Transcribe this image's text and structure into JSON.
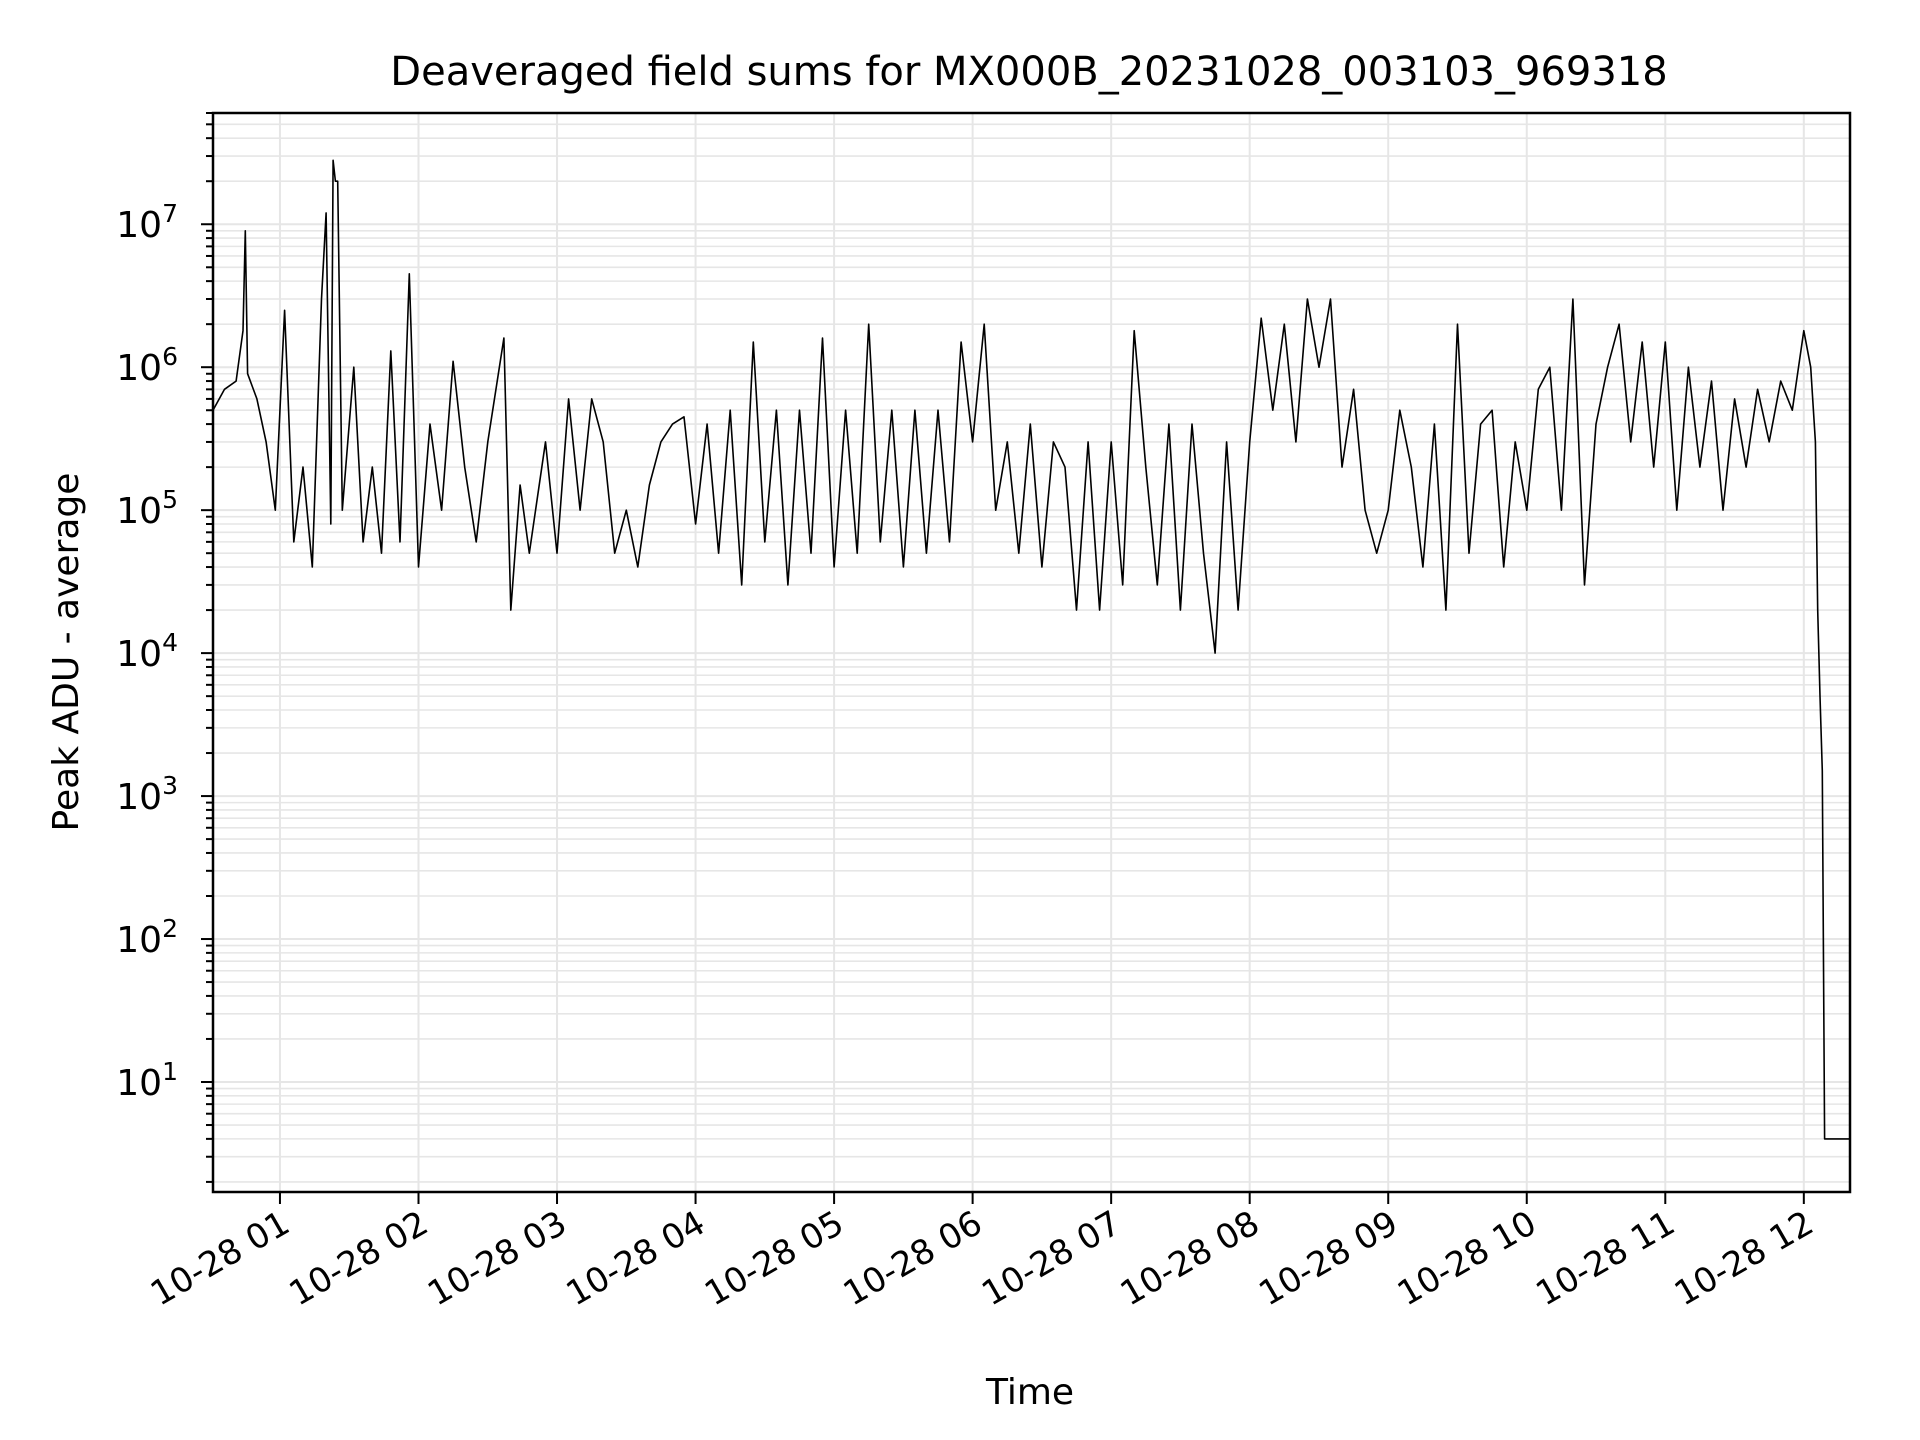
{
  "chart_data": {
    "type": "line",
    "title": "Deaveraged field sums for MX000B_20231028_003103_969318",
    "xlabel": "Time",
    "ylabel": "Peak ADU - average",
    "yscale": "log",
    "ylim": [
      1.7,
      60000000
    ],
    "xlim": [
      "2023-10-28 00:31",
      "2023-10-28 12:20"
    ],
    "x_ticks": [
      "10-28 01",
      "10-28 02",
      "10-28 03",
      "10-28 04",
      "10-28 05",
      "10-28 06",
      "10-28 07",
      "10-28 08",
      "10-28 09",
      "10-28 10",
      "10-28 11",
      "10-28 12"
    ],
    "y_ticks": [
      {
        "value": 10,
        "base": "10",
        "exp": "1"
      },
      {
        "value": 100,
        "base": "10",
        "exp": "2"
      },
      {
        "value": 1000,
        "base": "10",
        "exp": "3"
      },
      {
        "value": 10000,
        "base": "10",
        "exp": "4"
      },
      {
        "value": 100000,
        "base": "10",
        "exp": "5"
      },
      {
        "value": 1000000,
        "base": "10",
        "exp": "6"
      },
      {
        "value": 10000000,
        "base": "10",
        "exp": "7"
      }
    ],
    "grid": true,
    "legend": "none",
    "line_color": "#000000",
    "grid_color": "#e6e6e6",
    "series": [
      {
        "points": [
          [
            "2023-10-28 00:31",
            500000
          ],
          [
            "2023-10-28 00:36",
            700000
          ],
          [
            "2023-10-28 00:41",
            800000
          ],
          [
            "2023-10-28 00:44",
            1800000
          ],
          [
            "2023-10-28 00:45",
            9000000
          ],
          [
            "2023-10-28 00:46",
            900000
          ],
          [
            "2023-10-28 00:50",
            600000
          ],
          [
            "2023-10-28 00:54",
            300000
          ],
          [
            "2023-10-28 00:58",
            100000
          ],
          [
            "2023-10-28 01:02",
            2500000
          ],
          [
            "2023-10-28 01:06",
            60000
          ],
          [
            "2023-10-28 01:10",
            200000
          ],
          [
            "2023-10-28 01:14",
            40000
          ],
          [
            "2023-10-28 01:18",
            3000000
          ],
          [
            "2023-10-28 01:20",
            12000000
          ],
          [
            "2023-10-28 01:22",
            80000
          ],
          [
            "2023-10-28 01:23",
            28000000
          ],
          [
            "2023-10-28 01:24",
            20000000
          ],
          [
            "2023-10-28 01:25",
            20000000
          ],
          [
            "2023-10-28 01:27",
            100000
          ],
          [
            "2023-10-28 01:32",
            1000000
          ],
          [
            "2023-10-28 01:36",
            60000
          ],
          [
            "2023-10-28 01:40",
            200000
          ],
          [
            "2023-10-28 01:44",
            50000
          ],
          [
            "2023-10-28 01:48",
            1300000
          ],
          [
            "2023-10-28 01:52",
            60000
          ],
          [
            "2023-10-28 01:56",
            4500000
          ],
          [
            "2023-10-28 02:00",
            40000
          ],
          [
            "2023-10-28 02:05",
            400000
          ],
          [
            "2023-10-28 02:10",
            100000
          ],
          [
            "2023-10-28 02:15",
            1100000
          ],
          [
            "2023-10-28 02:20",
            200000
          ],
          [
            "2023-10-28 02:25",
            60000
          ],
          [
            "2023-10-28 02:30",
            300000
          ],
          [
            "2023-10-28 02:37",
            1600000
          ],
          [
            "2023-10-28 02:40",
            20000
          ],
          [
            "2023-10-28 02:44",
            150000
          ],
          [
            "2023-10-28 02:48",
            50000
          ],
          [
            "2023-10-28 02:55",
            300000
          ],
          [
            "2023-10-28 03:00",
            50000
          ],
          [
            "2023-10-28 03:05",
            600000
          ],
          [
            "2023-10-28 03:10",
            100000
          ],
          [
            "2023-10-28 03:15",
            600000
          ],
          [
            "2023-10-28 03:20",
            300000
          ],
          [
            "2023-10-28 03:25",
            50000
          ],
          [
            "2023-10-28 03:30",
            100000
          ],
          [
            "2023-10-28 03:35",
            40000
          ],
          [
            "2023-10-28 03:40",
            150000
          ],
          [
            "2023-10-28 03:45",
            300000
          ],
          [
            "2023-10-28 03:50",
            400000
          ],
          [
            "2023-10-28 03:55",
            450000
          ],
          [
            "2023-10-28 04:00",
            80000
          ],
          [
            "2023-10-28 04:05",
            400000
          ],
          [
            "2023-10-28 04:10",
            50000
          ],
          [
            "2023-10-28 04:15",
            500000
          ],
          [
            "2023-10-28 04:20",
            30000
          ],
          [
            "2023-10-28 04:25",
            1500000
          ],
          [
            "2023-10-28 04:30",
            60000
          ],
          [
            "2023-10-28 04:35",
            500000
          ],
          [
            "2023-10-28 04:40",
            30000
          ],
          [
            "2023-10-28 04:45",
            500000
          ],
          [
            "2023-10-28 04:50",
            50000
          ],
          [
            "2023-10-28 04:55",
            1600000
          ],
          [
            "2023-10-28 05:00",
            40000
          ],
          [
            "2023-10-28 05:05",
            500000
          ],
          [
            "2023-10-28 05:10",
            50000
          ],
          [
            "2023-10-28 05:15",
            2000000
          ],
          [
            "2023-10-28 05:20",
            60000
          ],
          [
            "2023-10-28 05:25",
            500000
          ],
          [
            "2023-10-28 05:30",
            40000
          ],
          [
            "2023-10-28 05:35",
            500000
          ],
          [
            "2023-10-28 05:40",
            50000
          ],
          [
            "2023-10-28 05:45",
            500000
          ],
          [
            "2023-10-28 05:50",
            60000
          ],
          [
            "2023-10-28 05:55",
            1500000
          ],
          [
            "2023-10-28 06:00",
            300000
          ],
          [
            "2023-10-28 06:05",
            2000000
          ],
          [
            "2023-10-28 06:10",
            100000
          ],
          [
            "2023-10-28 06:15",
            300000
          ],
          [
            "2023-10-28 06:20",
            50000
          ],
          [
            "2023-10-28 06:25",
            400000
          ],
          [
            "2023-10-28 06:30",
            40000
          ],
          [
            "2023-10-28 06:35",
            300000
          ],
          [
            "2023-10-28 06:40",
            200000
          ],
          [
            "2023-10-28 06:45",
            20000
          ],
          [
            "2023-10-28 06:50",
            300000
          ],
          [
            "2023-10-28 06:55",
            20000
          ],
          [
            "2023-10-28 07:00",
            300000
          ],
          [
            "2023-10-28 07:05",
            30000
          ],
          [
            "2023-10-28 07:10",
            1800000
          ],
          [
            "2023-10-28 07:15",
            200000
          ],
          [
            "2023-10-28 07:20",
            30000
          ],
          [
            "2023-10-28 07:25",
            400000
          ],
          [
            "2023-10-28 07:30",
            20000
          ],
          [
            "2023-10-28 07:35",
            400000
          ],
          [
            "2023-10-28 07:40",
            50000
          ],
          [
            "2023-10-28 07:45",
            10000
          ],
          [
            "2023-10-28 07:50",
            300000
          ],
          [
            "2023-10-28 07:55",
            20000
          ],
          [
            "2023-10-28 08:00",
            300000
          ],
          [
            "2023-10-28 08:05",
            2200000
          ],
          [
            "2023-10-28 08:10",
            500000
          ],
          [
            "2023-10-28 08:15",
            2000000
          ],
          [
            "2023-10-28 08:20",
            300000
          ],
          [
            "2023-10-28 08:25",
            3000000
          ],
          [
            "2023-10-28 08:30",
            1000000
          ],
          [
            "2023-10-28 08:35",
            3000000
          ],
          [
            "2023-10-28 08:40",
            200000
          ],
          [
            "2023-10-28 08:45",
            700000
          ],
          [
            "2023-10-28 08:50",
            100000
          ],
          [
            "2023-10-28 08:55",
            50000
          ],
          [
            "2023-10-28 09:00",
            100000
          ],
          [
            "2023-10-28 09:05",
            500000
          ],
          [
            "2023-10-28 09:10",
            200000
          ],
          [
            "2023-10-28 09:15",
            40000
          ],
          [
            "2023-10-28 09:20",
            400000
          ],
          [
            "2023-10-28 09:25",
            20000
          ],
          [
            "2023-10-28 09:30",
            2000000
          ],
          [
            "2023-10-28 09:35",
            50000
          ],
          [
            "2023-10-28 09:40",
            400000
          ],
          [
            "2023-10-28 09:45",
            500000
          ],
          [
            "2023-10-28 09:50",
            40000
          ],
          [
            "2023-10-28 09:55",
            300000
          ],
          [
            "2023-10-28 10:00",
            100000
          ],
          [
            "2023-10-28 10:05",
            700000
          ],
          [
            "2023-10-28 10:10",
            1000000
          ],
          [
            "2023-10-28 10:15",
            100000
          ],
          [
            "2023-10-28 10:20",
            3000000
          ],
          [
            "2023-10-28 10:25",
            30000
          ],
          [
            "2023-10-28 10:30",
            400000
          ],
          [
            "2023-10-28 10:35",
            1000000
          ],
          [
            "2023-10-28 10:40",
            2000000
          ],
          [
            "2023-10-28 10:45",
            300000
          ],
          [
            "2023-10-28 10:50",
            1500000
          ],
          [
            "2023-10-28 10:55",
            200000
          ],
          [
            "2023-10-28 11:00",
            1500000
          ],
          [
            "2023-10-28 11:05",
            100000
          ],
          [
            "2023-10-28 11:10",
            1000000
          ],
          [
            "2023-10-28 11:15",
            200000
          ],
          [
            "2023-10-28 11:20",
            800000
          ],
          [
            "2023-10-28 11:25",
            100000
          ],
          [
            "2023-10-28 11:30",
            600000
          ],
          [
            "2023-10-28 11:35",
            200000
          ],
          [
            "2023-10-28 11:40",
            700000
          ],
          [
            "2023-10-28 11:45",
            300000
          ],
          [
            "2023-10-28 11:50",
            800000
          ],
          [
            "2023-10-28 11:55",
            500000
          ],
          [
            "2023-10-28 12:00",
            1800000
          ],
          [
            "2023-10-28 12:03",
            1000000
          ],
          [
            "2023-10-28 12:05",
            300000
          ],
          [
            "2023-10-28 12:06",
            20000
          ],
          [
            "2023-10-28 12:07",
            5000
          ],
          [
            "2023-10-28 12:08",
            1500
          ],
          [
            "2023-10-28 12:09",
            4
          ],
          [
            "2023-10-28 12:20",
            4
          ]
        ]
      }
    ]
  }
}
